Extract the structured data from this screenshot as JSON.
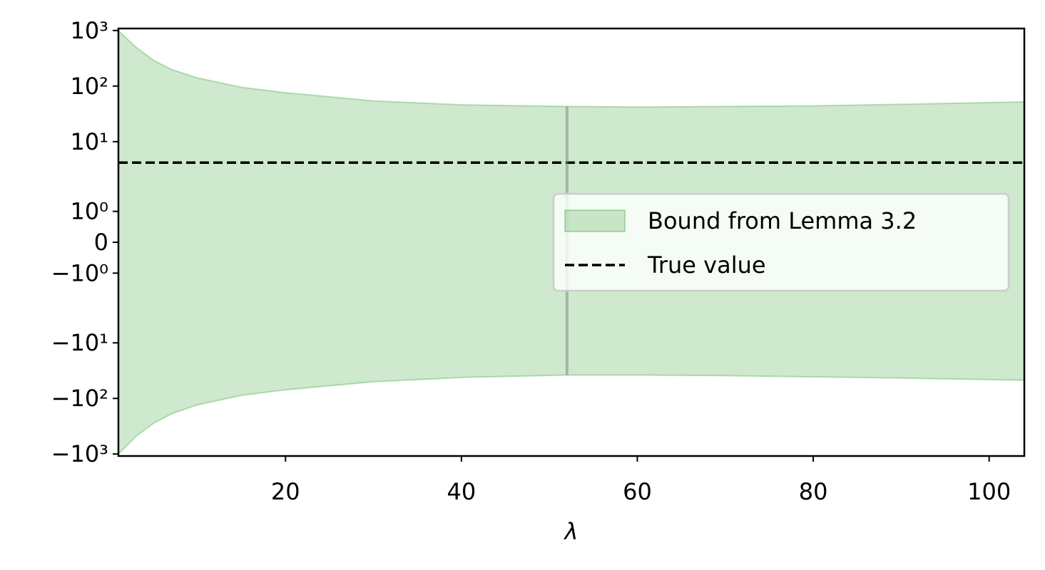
{
  "chart_data": {
    "type": "fill_between",
    "x_label": "λ",
    "xlim": [
      1,
      104
    ],
    "xticks": [
      20,
      40,
      60,
      80,
      100
    ],
    "ylim": [
      -1086,
      1086
    ],
    "yscale": "symlog",
    "linthresh": 2,
    "linscale": 1,
    "yticks": [
      {
        "value": 1000,
        "label": "10³"
      },
      {
        "value": 100,
        "label": "10²"
      },
      {
        "value": 10,
        "label": "10¹"
      },
      {
        "value": 1,
        "label": "10⁰"
      },
      0,
      {
        "value": -1,
        "label": "−10⁰"
      },
      {
        "value": -10,
        "label": "−10¹"
      },
      {
        "value": -100,
        "label": "−10²"
      },
      {
        "value": -1000,
        "label": "−10³"
      }
    ],
    "series": [
      {
        "name": "Bound from Lemma 3.2",
        "type": "fill_between",
        "color": "#2ca02c",
        "x": [
          1,
          2,
          3,
          5,
          7,
          10,
          15,
          20,
          30,
          40,
          52,
          60,
          70,
          80,
          90,
          104
        ],
        "upper": [
          1000,
          700,
          500,
          290,
          200,
          140,
          95,
          76,
          54,
          46,
          43,
          42,
          43,
          44,
          47,
          52
        ],
        "lower": [
          -1000,
          -700,
          -480,
          -280,
          -190,
          -130,
          -88,
          -70,
          -50,
          -42,
          -38,
          -38,
          -39,
          -41,
          -43,
          -47
        ]
      },
      {
        "name": "True value",
        "type": "hline",
        "color": "#000000",
        "value": 4.2
      }
    ],
    "vline": {
      "x": 52,
      "ymin": -38,
      "ymax": 43,
      "color": "#808080"
    },
    "legend": "center right"
  }
}
